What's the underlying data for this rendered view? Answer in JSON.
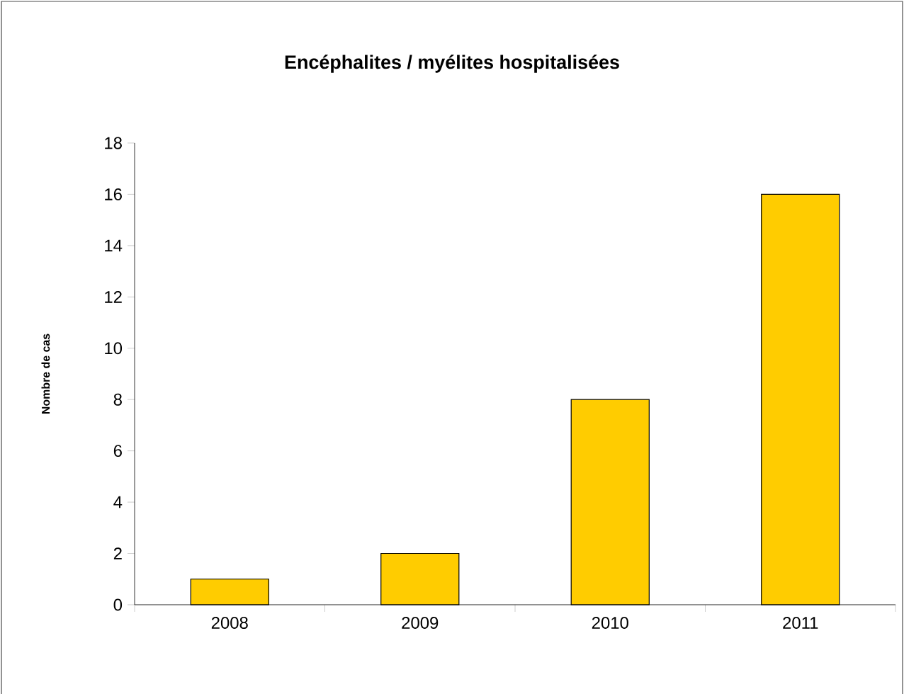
{
  "chart_data": {
    "type": "bar",
    "title": "Encéphalites / myélites hospitalisées",
    "ylabel": "Nombre de cas",
    "categories": [
      "2008",
      "2009",
      "2010",
      "2011"
    ],
    "values": [
      1,
      2,
      8,
      16
    ],
    "color": "#ffcc00",
    "ylim": [
      0,
      18
    ],
    "yticks": [
      0,
      2,
      4,
      6,
      8,
      10,
      12,
      14,
      16,
      18
    ],
    "grid": false
  }
}
